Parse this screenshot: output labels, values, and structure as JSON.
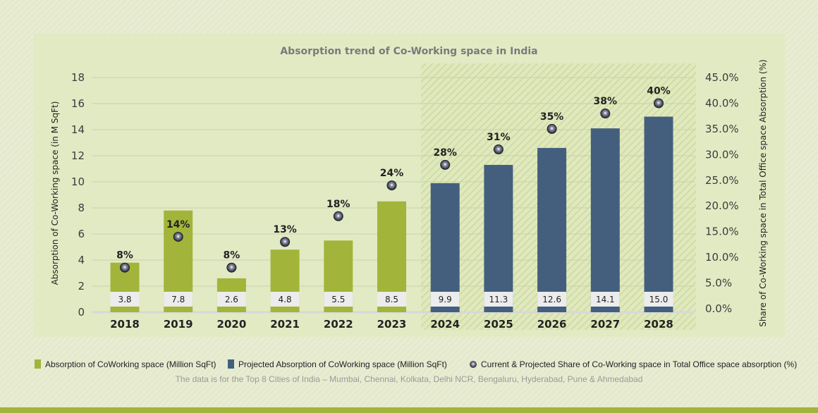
{
  "chart_data": {
    "type": "bar",
    "title": "Absorption trend of Co-Working space in India",
    "ylabel": "Absorption of Co-Working space (in M SqFt)",
    "y2label": "Share of Co-Working space in Total Office space Absorption (%)",
    "ylim": [
      0,
      18
    ],
    "y2lim": [
      0,
      45
    ],
    "yticks": [
      "0",
      "2",
      "4",
      "6",
      "8",
      "10",
      "12",
      "14",
      "16",
      "18"
    ],
    "y2ticks": [
      "0.0%",
      "5.0%",
      "10.0%",
      "15.0%",
      "20.0%",
      "25.0%",
      "30.0%",
      "35.0%",
      "40.0%",
      "45.0%"
    ],
    "grid": true,
    "categories": [
      "2018",
      "2019",
      "2020",
      "2021",
      "2022",
      "2023",
      "2024",
      "2025",
      "2026",
      "2027",
      "2028"
    ],
    "series": [
      {
        "name": "Absorption of CoWorking space (Million SqFt)",
        "type": "bar",
        "color": "#a3b43a",
        "values": [
          3.8,
          7.8,
          2.6,
          4.8,
          5.5,
          8.5,
          null,
          null,
          null,
          null,
          null
        ],
        "labels": [
          "3.8",
          "7.8",
          "2.6",
          "4.8",
          "5.5",
          "8.5",
          "",
          "",
          "",
          "",
          ""
        ]
      },
      {
        "name": "Projected Absorption of CoWorking space (Million SqFt)",
        "type": "bar",
        "color": "#445f7e",
        "values": [
          null,
          null,
          null,
          null,
          null,
          null,
          9.9,
          11.3,
          12.6,
          14.1,
          15.0
        ],
        "labels": [
          "",
          "",
          "",
          "",
          "",
          "",
          "9.9",
          "11.3",
          "12.6",
          "14.1",
          "15.0"
        ]
      },
      {
        "name": "Current & Projected Share of Co-Working space in Total Office space absorption (%)",
        "type": "scatter",
        "axis": "right",
        "color": "#2a2d3c",
        "values": [
          8,
          14,
          8,
          13,
          18,
          24,
          28,
          31,
          35,
          38,
          40
        ],
        "labels": [
          "8%",
          "14%",
          "8%",
          "13%",
          "18%",
          "24%",
          "28%",
          "31%",
          "35%",
          "38%",
          "40%"
        ]
      }
    ],
    "projected_region": [
      "2024",
      "2028"
    ],
    "legend_position": "bottom",
    "footnote": "The data is for the Top 8 Cities of India – Mumbai, Chennai, Kolkata, Delhi NCR, Bengaluru, Hyderabad, Pune & Ahmedabad"
  }
}
